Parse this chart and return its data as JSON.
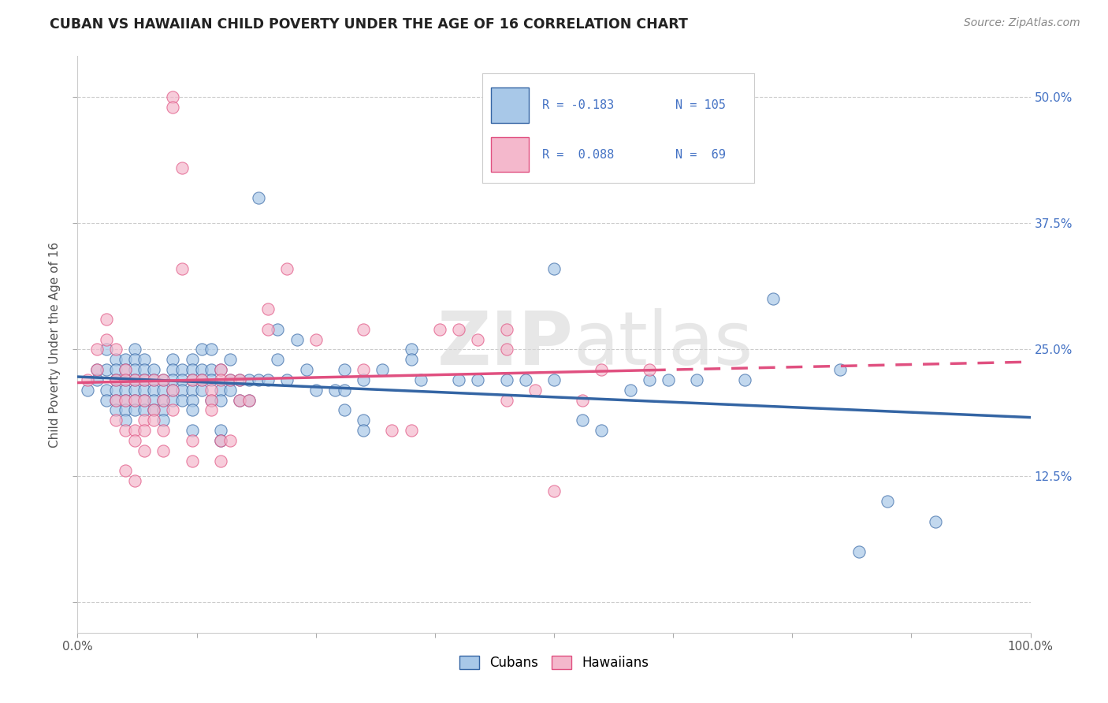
{
  "title": "CUBAN VS HAWAIIAN CHILD POVERTY UNDER THE AGE OF 16 CORRELATION CHART",
  "source": "Source: ZipAtlas.com",
  "ylabel": "Child Poverty Under the Age of 16",
  "xlim": [
    0,
    100
  ],
  "ylim": [
    -3,
    54
  ],
  "yticks": [
    0,
    12.5,
    25.0,
    37.5,
    50.0
  ],
  "xticks": [
    0,
    12.5,
    25,
    37.5,
    50,
    62.5,
    75,
    87.5,
    100
  ],
  "cubans_color": "#a8c8e8",
  "hawaiians_color": "#f4b8cc",
  "trendline_cubans_color": "#3465a4",
  "trendline_hawaiians_color": "#e05080",
  "legend_text_color": "#4472c4",
  "watermark": "ZIPatlas",
  "cubans_scatter": [
    [
      1,
      21
    ],
    [
      2,
      23
    ],
    [
      2,
      22
    ],
    [
      3,
      25
    ],
    [
      3,
      23
    ],
    [
      3,
      21
    ],
    [
      3,
      20
    ],
    [
      4,
      24
    ],
    [
      4,
      23
    ],
    [
      4,
      22
    ],
    [
      4,
      21
    ],
    [
      4,
      20
    ],
    [
      4,
      19
    ],
    [
      5,
      24
    ],
    [
      5,
      23
    ],
    [
      5,
      22
    ],
    [
      5,
      21
    ],
    [
      5,
      20
    ],
    [
      5,
      19
    ],
    [
      5,
      18
    ],
    [
      6,
      25
    ],
    [
      6,
      24
    ],
    [
      6,
      23
    ],
    [
      6,
      22
    ],
    [
      6,
      21
    ],
    [
      6,
      20
    ],
    [
      6,
      19
    ],
    [
      7,
      24
    ],
    [
      7,
      23
    ],
    [
      7,
      22
    ],
    [
      7,
      21
    ],
    [
      7,
      20
    ],
    [
      7,
      19
    ],
    [
      8,
      23
    ],
    [
      8,
      22
    ],
    [
      8,
      21
    ],
    [
      8,
      20
    ],
    [
      8,
      19
    ],
    [
      9,
      22
    ],
    [
      9,
      21
    ],
    [
      9,
      20
    ],
    [
      9,
      19
    ],
    [
      9,
      18
    ],
    [
      10,
      24
    ],
    [
      10,
      23
    ],
    [
      10,
      22
    ],
    [
      10,
      21
    ],
    [
      10,
      20
    ],
    [
      11,
      23
    ],
    [
      11,
      22
    ],
    [
      11,
      21
    ],
    [
      11,
      20
    ],
    [
      12,
      24
    ],
    [
      12,
      23
    ],
    [
      12,
      22
    ],
    [
      12,
      21
    ],
    [
      12,
      20
    ],
    [
      12,
      19
    ],
    [
      12,
      17
    ],
    [
      13,
      25
    ],
    [
      13,
      23
    ],
    [
      13,
      22
    ],
    [
      13,
      21
    ],
    [
      14,
      25
    ],
    [
      14,
      23
    ],
    [
      14,
      22
    ],
    [
      14,
      20
    ],
    [
      15,
      23
    ],
    [
      15,
      21
    ],
    [
      15,
      20
    ],
    [
      15,
      17
    ],
    [
      15,
      16
    ],
    [
      16,
      24
    ],
    [
      16,
      22
    ],
    [
      16,
      21
    ],
    [
      17,
      22
    ],
    [
      17,
      20
    ],
    [
      18,
      22
    ],
    [
      18,
      20
    ],
    [
      19,
      40
    ],
    [
      19,
      22
    ],
    [
      20,
      22
    ],
    [
      21,
      27
    ],
    [
      21,
      24
    ],
    [
      22,
      22
    ],
    [
      23,
      26
    ],
    [
      24,
      23
    ],
    [
      25,
      21
    ],
    [
      27,
      21
    ],
    [
      28,
      23
    ],
    [
      28,
      21
    ],
    [
      28,
      19
    ],
    [
      30,
      22
    ],
    [
      30,
      18
    ],
    [
      30,
      17
    ],
    [
      32,
      23
    ],
    [
      35,
      25
    ],
    [
      35,
      24
    ],
    [
      36,
      22
    ],
    [
      40,
      22
    ],
    [
      42,
      22
    ],
    [
      45,
      22
    ],
    [
      47,
      22
    ],
    [
      50,
      33
    ],
    [
      50,
      22
    ],
    [
      53,
      18
    ],
    [
      55,
      17
    ],
    [
      58,
      21
    ],
    [
      60,
      22
    ],
    [
      62,
      22
    ],
    [
      65,
      22
    ],
    [
      70,
      22
    ],
    [
      73,
      30
    ],
    [
      80,
      23
    ],
    [
      82,
      5
    ],
    [
      85,
      10
    ],
    [
      90,
      8
    ]
  ],
  "hawaiians_scatter": [
    [
      1,
      22
    ],
    [
      2,
      25
    ],
    [
      2,
      23
    ],
    [
      3,
      28
    ],
    [
      3,
      26
    ],
    [
      4,
      25
    ],
    [
      4,
      22
    ],
    [
      4,
      20
    ],
    [
      4,
      18
    ],
    [
      5,
      23
    ],
    [
      5,
      22
    ],
    [
      5,
      20
    ],
    [
      5,
      17
    ],
    [
      5,
      13
    ],
    [
      6,
      22
    ],
    [
      6,
      20
    ],
    [
      6,
      17
    ],
    [
      6,
      16
    ],
    [
      6,
      12
    ],
    [
      7,
      22
    ],
    [
      7,
      20
    ],
    [
      7,
      18
    ],
    [
      7,
      17
    ],
    [
      7,
      15
    ],
    [
      8,
      22
    ],
    [
      8,
      19
    ],
    [
      8,
      18
    ],
    [
      9,
      22
    ],
    [
      9,
      20
    ],
    [
      9,
      17
    ],
    [
      9,
      15
    ],
    [
      10,
      50
    ],
    [
      10,
      49
    ],
    [
      10,
      21
    ],
    [
      10,
      19
    ],
    [
      11,
      43
    ],
    [
      11,
      33
    ],
    [
      12,
      22
    ],
    [
      12,
      16
    ],
    [
      12,
      14
    ],
    [
      13,
      22
    ],
    [
      14,
      21
    ],
    [
      14,
      20
    ],
    [
      14,
      19
    ],
    [
      15,
      23
    ],
    [
      15,
      22
    ],
    [
      15,
      16
    ],
    [
      15,
      14
    ],
    [
      16,
      22
    ],
    [
      16,
      16
    ],
    [
      17,
      22
    ],
    [
      17,
      20
    ],
    [
      18,
      20
    ],
    [
      20,
      29
    ],
    [
      20,
      27
    ],
    [
      22,
      33
    ],
    [
      25,
      26
    ],
    [
      30,
      27
    ],
    [
      30,
      23
    ],
    [
      33,
      17
    ],
    [
      35,
      17
    ],
    [
      38,
      27
    ],
    [
      40,
      27
    ],
    [
      42,
      26
    ],
    [
      45,
      27
    ],
    [
      45,
      25
    ],
    [
      45,
      20
    ],
    [
      48,
      21
    ],
    [
      50,
      11
    ],
    [
      53,
      20
    ],
    [
      55,
      23
    ],
    [
      60,
      23
    ]
  ]
}
